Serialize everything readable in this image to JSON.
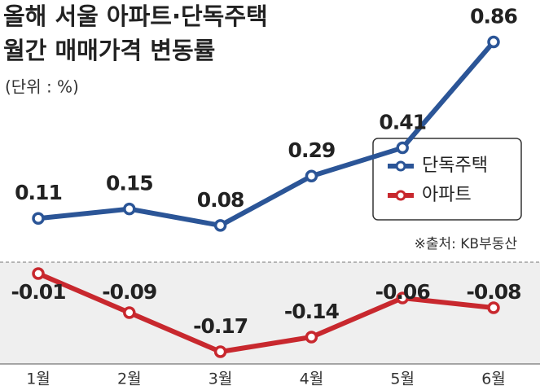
{
  "chart_data": {
    "type": "line",
    "title": [
      "올해 서울 아파트·단독주택",
      "월간 매매가격 변동률"
    ],
    "subtitle": "(단위 : %)",
    "source": "※출처: KB부동산",
    "categories": [
      "1월",
      "2월",
      "3월",
      "4월",
      "5월",
      "6월"
    ],
    "ylim": [
      0,
      0.9
    ],
    "y2lim": [
      -0.2,
      0
    ],
    "series": [
      {
        "name": "단독주택",
        "color": "#2b5597",
        "values": [
          0.11,
          0.15,
          0.08,
          0.29,
          0.41,
          0.86
        ]
      },
      {
        "name": "아파트",
        "color": "#c8282e",
        "axis": "y2",
        "values": [
          -0.01,
          -0.09,
          -0.17,
          -0.14,
          -0.06,
          -0.08
        ]
      }
    ]
  }
}
